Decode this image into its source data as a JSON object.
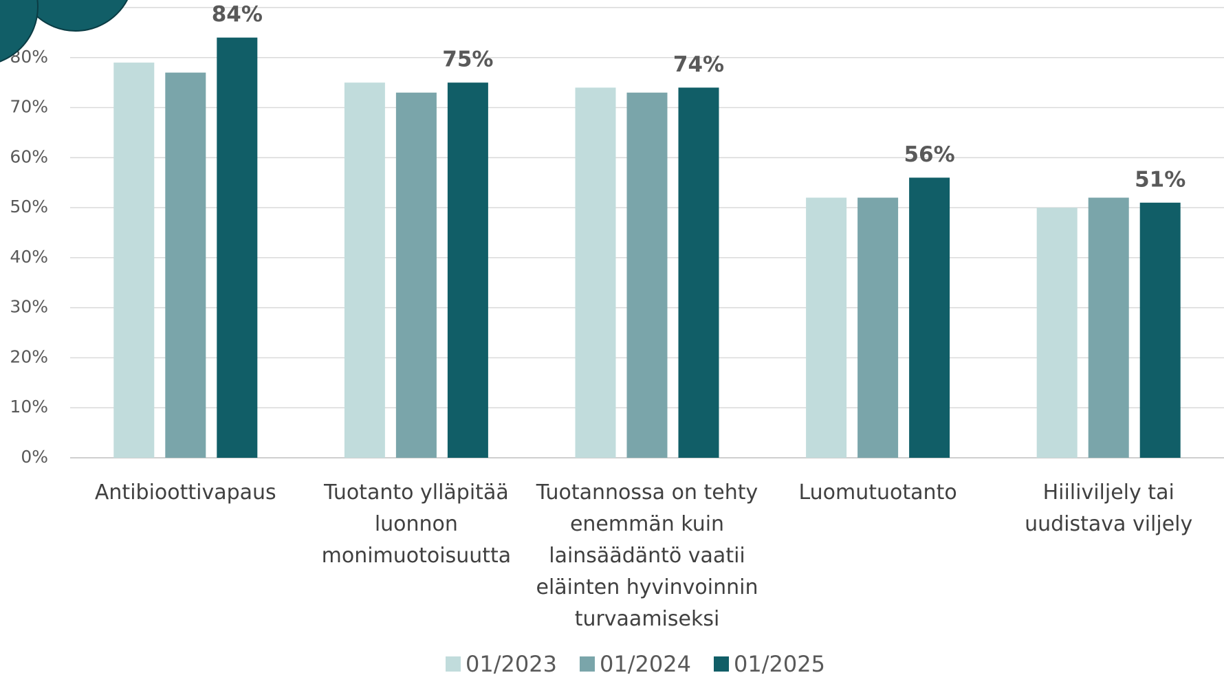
{
  "chart_data": {
    "type": "bar",
    "categories": [
      "Antibioottivapaus",
      "Tuotanto ylläpitää\nluonnon\nmonimuotoisuutta",
      "Tuotannossa on tehty\nenemmän kuin\nlainsäädäntö vaatii\neläinten hyvinvoinnin\nturvaamiseksi",
      "Luomutuotanto",
      "Hiiliviljely tai\nuudistava viljely"
    ],
    "series": [
      {
        "name": "01/2023",
        "color": "#c1dcdc",
        "values": [
          79,
          75,
          74,
          52,
          50
        ]
      },
      {
        "name": "01/2024",
        "color": "#7aa5aa",
        "values": [
          77,
          73,
          73,
          52,
          52
        ]
      },
      {
        "name": "01/2025",
        "color": "#115e67",
        "values": [
          84,
          75,
          74,
          56,
          51
        ],
        "value_labels": [
          "84%",
          "75%",
          "74%",
          "56%",
          "51%"
        ]
      }
    ],
    "ylim": [
      0,
      90
    ],
    "yticks": [
      {
        "value": 0,
        "label": "0%"
      },
      {
        "value": 10,
        "label": "10%"
      },
      {
        "value": 20,
        "label": "20%"
      },
      {
        "value": 30,
        "label": "30%"
      },
      {
        "value": 40,
        "label": "40%"
      },
      {
        "value": 50,
        "label": "50%"
      },
      {
        "value": 60,
        "label": "60%"
      },
      {
        "value": 70,
        "label": "70%"
      },
      {
        "value": 80,
        "label": "80%"
      }
    ],
    "grid": true,
    "legend": "bottom"
  }
}
